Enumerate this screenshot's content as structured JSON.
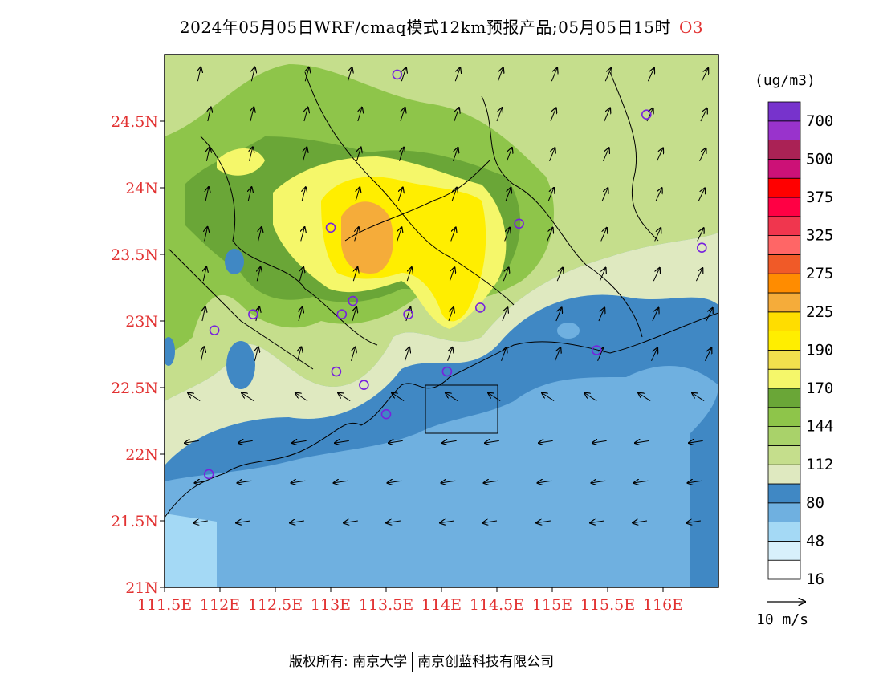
{
  "title": {
    "date": "2024年05月05日",
    "model": "WRF/cmaq模式12km预报产品",
    "valid": ";05月05日15时",
    "pollutant": "O3"
  },
  "legend": {
    "unit": "(ug/m3)",
    "levels": [
      {
        "label": "16",
        "color": "#ffffff"
      },
      {
        "label": "",
        "color": "#d8f0fb"
      },
      {
        "label": "48",
        "color": "#a4d9f5"
      },
      {
        "label": "",
        "color": "#6fb0e0"
      },
      {
        "label": "80",
        "color": "#4088c4"
      },
      {
        "label": "",
        "color": "#dfe9c0"
      },
      {
        "label": "112",
        "color": "#c5de8c"
      },
      {
        "label": "",
        "color": "#a9d26a"
      },
      {
        "label": "144",
        "color": "#8ec54a"
      },
      {
        "label": "",
        "color": "#6aa637"
      },
      {
        "label": "170",
        "color": "#f5f76a"
      },
      {
        "label": "",
        "color": "#f2e04d"
      },
      {
        "label": "190",
        "color": "#ffee00"
      },
      {
        "label": "",
        "color": "#ffdd00"
      },
      {
        "label": "225",
        "color": "#f5ac3a"
      },
      {
        "label": "",
        "color": "#ff8c00"
      },
      {
        "label": "275",
        "color": "#f05a28"
      },
      {
        "label": "",
        "color": "#ff6666"
      },
      {
        "label": "325",
        "color": "#f0364e"
      },
      {
        "label": "",
        "color": "#ff0044"
      },
      {
        "label": "375",
        "color": "#ff0000"
      },
      {
        "label": "",
        "color": "#cc1177"
      },
      {
        "label": "500",
        "color": "#aa2255"
      },
      {
        "label": "",
        "color": "#9933cc"
      },
      {
        "label": "700",
        "color": "#7733cc"
      }
    ]
  },
  "axes": {
    "x_ticks": [
      "111.5E",
      "112E",
      "112.5E",
      "113E",
      "113.5E",
      "114E",
      "114.5E",
      "115E",
      "115.5E",
      "116E"
    ],
    "y_ticks": [
      "24.5N",
      "24N",
      "23.5N",
      "23N",
      "22.5N",
      "22N",
      "21.5N",
      "21N"
    ]
  },
  "wind_scale": {
    "label": "10 m/s"
  },
  "footer": {
    "left": "版权所有: 南京大学",
    "right": "南京创蓝科技有限公司"
  },
  "stations": [
    {
      "lon": 113.6,
      "lat": 24.85
    },
    {
      "lon": 115.85,
      "lat": 24.55
    },
    {
      "lon": 113.0,
      "lat": 23.7
    },
    {
      "lon": 114.7,
      "lat": 23.73
    },
    {
      "lon": 116.35,
      "lat": 23.55
    },
    {
      "lon": 113.2,
      "lat": 23.15
    },
    {
      "lon": 112.3,
      "lat": 23.05
    },
    {
      "lon": 113.1,
      "lat": 23.05
    },
    {
      "lon": 113.7,
      "lat": 23.05
    },
    {
      "lon": 114.35,
      "lat": 23.1
    },
    {
      "lon": 111.95,
      "lat": 22.93
    },
    {
      "lon": 115.4,
      "lat": 22.78
    },
    {
      "lon": 113.05,
      "lat": 22.62
    },
    {
      "lon": 114.05,
      "lat": 22.62
    },
    {
      "lon": 113.3,
      "lat": 22.52
    },
    {
      "lon": 113.5,
      "lat": 22.3
    },
    {
      "lon": 111.9,
      "lat": 21.85
    }
  ]
}
